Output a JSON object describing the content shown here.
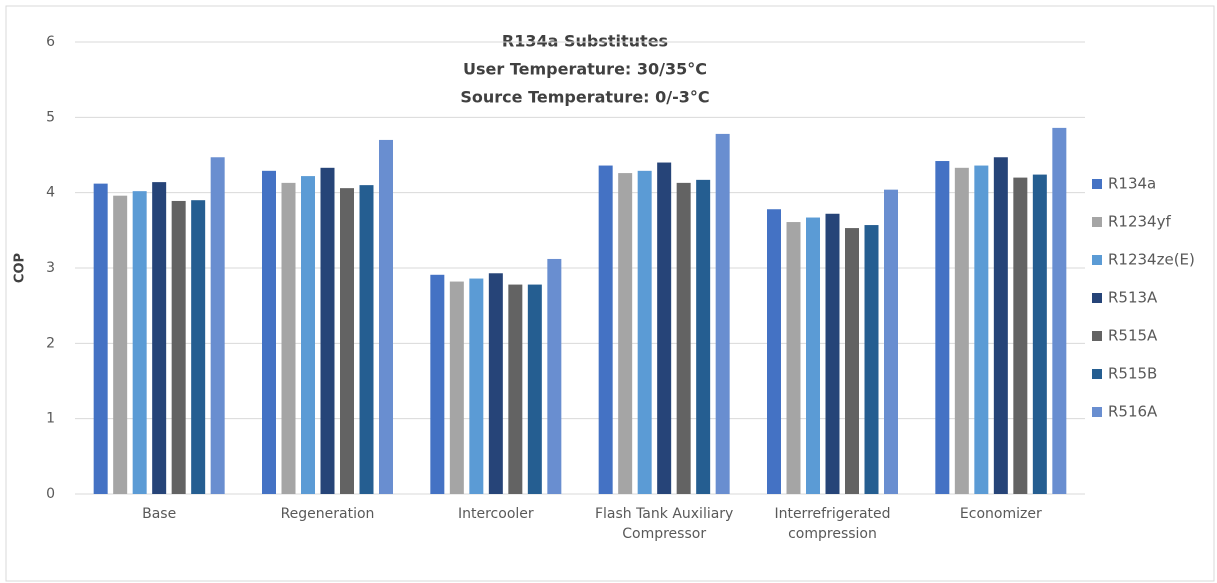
{
  "chart_data": {
    "type": "bar",
    "title": "R134a Substitutes",
    "subtitle": [
      "User Temperature: 30/35°C",
      "Source Temperature: 0/-3°C"
    ],
    "y_label": "COP",
    "categories": [
      "Base",
      "Regeneration",
      "Intercooler",
      "Flash Tank Auxiliary Compressor",
      "Interrefrigerated compression",
      "Economizer"
    ],
    "series": [
      {
        "name": "R134a",
        "color": "#4472c4",
        "values": [
          4.12,
          4.29,
          2.91,
          4.36,
          3.78,
          4.42
        ]
      },
      {
        "name": "R1234yf",
        "color": "#a5a5a5",
        "values": [
          3.96,
          4.13,
          2.82,
          4.26,
          3.61,
          4.33
        ]
      },
      {
        "name": "R1234ze(E)",
        "color": "#5b9bd5",
        "values": [
          4.02,
          4.22,
          2.86,
          4.29,
          3.67,
          4.36
        ]
      },
      {
        "name": "R513A",
        "color": "#264478",
        "values": [
          4.14,
          4.33,
          2.93,
          4.4,
          3.72,
          4.47
        ]
      },
      {
        "name": "R515A",
        "color": "#636363",
        "values": [
          3.89,
          4.06,
          2.78,
          4.13,
          3.53,
          4.2
        ]
      },
      {
        "name": "R515B",
        "color": "#255e91",
        "values": [
          3.9,
          4.1,
          2.78,
          4.17,
          3.57,
          4.24
        ]
      },
      {
        "name": "R516A",
        "color": "#698ed0",
        "values": [
          4.47,
          4.7,
          3.12,
          4.78,
          4.04,
          4.86
        ]
      }
    ],
    "ylim": [
      0,
      6
    ],
    "yticks": [
      0,
      1,
      2,
      3,
      4,
      5,
      6
    ],
    "grid": true,
    "legend": "right"
  }
}
